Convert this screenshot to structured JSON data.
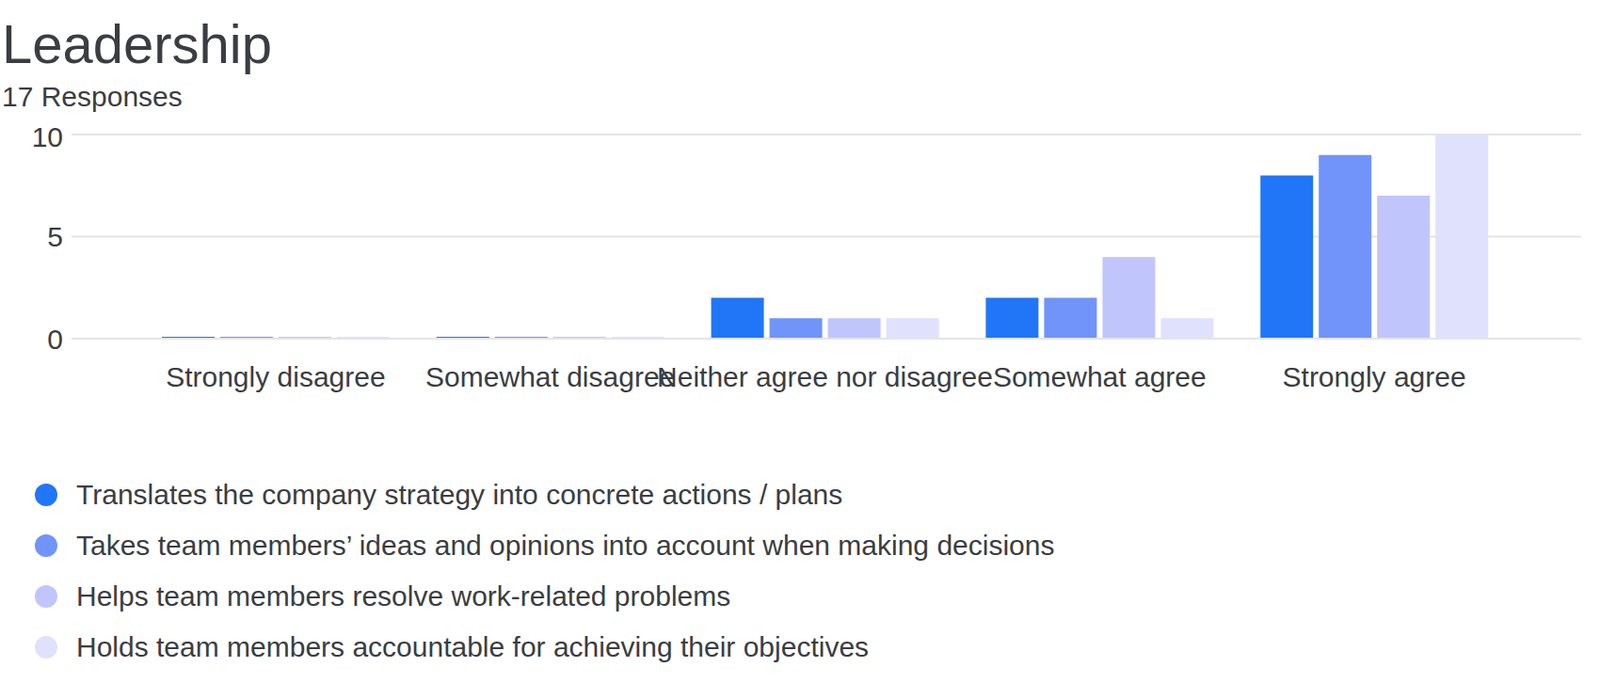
{
  "chart_data": {
    "type": "bar",
    "title": "Leadership",
    "subtitle": "17 Responses",
    "categories": [
      "Strongly disagree",
      "Somewhat disagree",
      "Neither agree nor disagree",
      "Somewhat agree",
      "Strongly agree"
    ],
    "series": [
      {
        "name": "Translates the company strategy into concrete actions / plans",
        "color": "#2176f7",
        "values": [
          0,
          0,
          2,
          2,
          8
        ]
      },
      {
        "name": "Takes team members’ ideas and opinions into account when making decisions",
        "color": "#7094f9",
        "values": [
          0,
          0,
          1,
          2,
          9
        ]
      },
      {
        "name": "Helps team members resolve work-related problems",
        "color": "#c0c6fb",
        "values": [
          0,
          0,
          1,
          4,
          7
        ]
      },
      {
        "name": "Holds team members accountable for achieving their objectives",
        "color": "#e0e1fd",
        "values": [
          0,
          0,
          1,
          1,
          10
        ]
      }
    ],
    "ylim": [
      0,
      10
    ],
    "yticks": [
      0,
      5,
      10
    ],
    "grid": true,
    "legend": "bottom"
  }
}
